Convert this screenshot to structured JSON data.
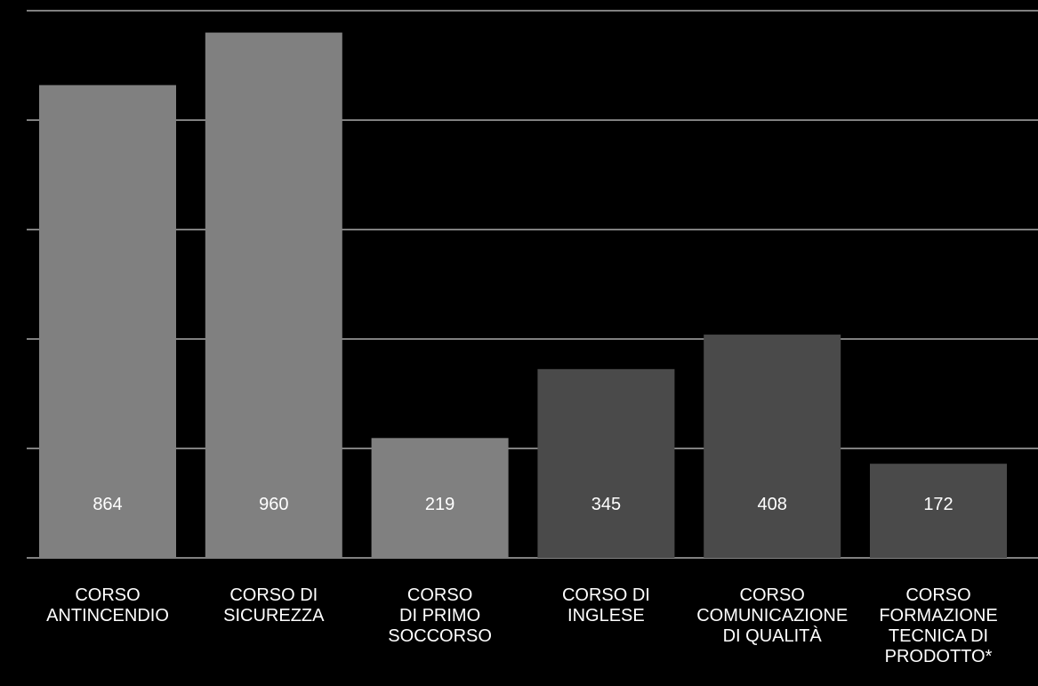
{
  "chart_data": {
    "type": "bar",
    "title": "",
    "xlabel": "",
    "ylabel": "",
    "ylim": [
      0,
      1000
    ],
    "grid": true,
    "categories": [
      "CORSO\nANTINCENDIO",
      "CORSO DI\nSICUREZZA",
      "CORSO\nDI PRIMO\nSOCCORSO",
      "CORSO DI\nINGLESE",
      "CORSO\nCOMUNICAZIONE\nDI QUALITÀ",
      "CORSO\nFORMAZIONE\nTECNICA DI\nPRODOTTO*"
    ],
    "values": [
      864,
      960,
      219,
      345,
      408,
      172
    ],
    "value_labels": [
      "864",
      "960",
      "219",
      "345",
      "408",
      "172"
    ],
    "colors": [
      "#808080",
      "#808080",
      "#808080",
      "#4a4a4a",
      "#4a4a4a",
      "#4a4a4a"
    ],
    "background": "#000000",
    "gridline_color": "#ffffff",
    "label_color": "#ffffff"
  }
}
